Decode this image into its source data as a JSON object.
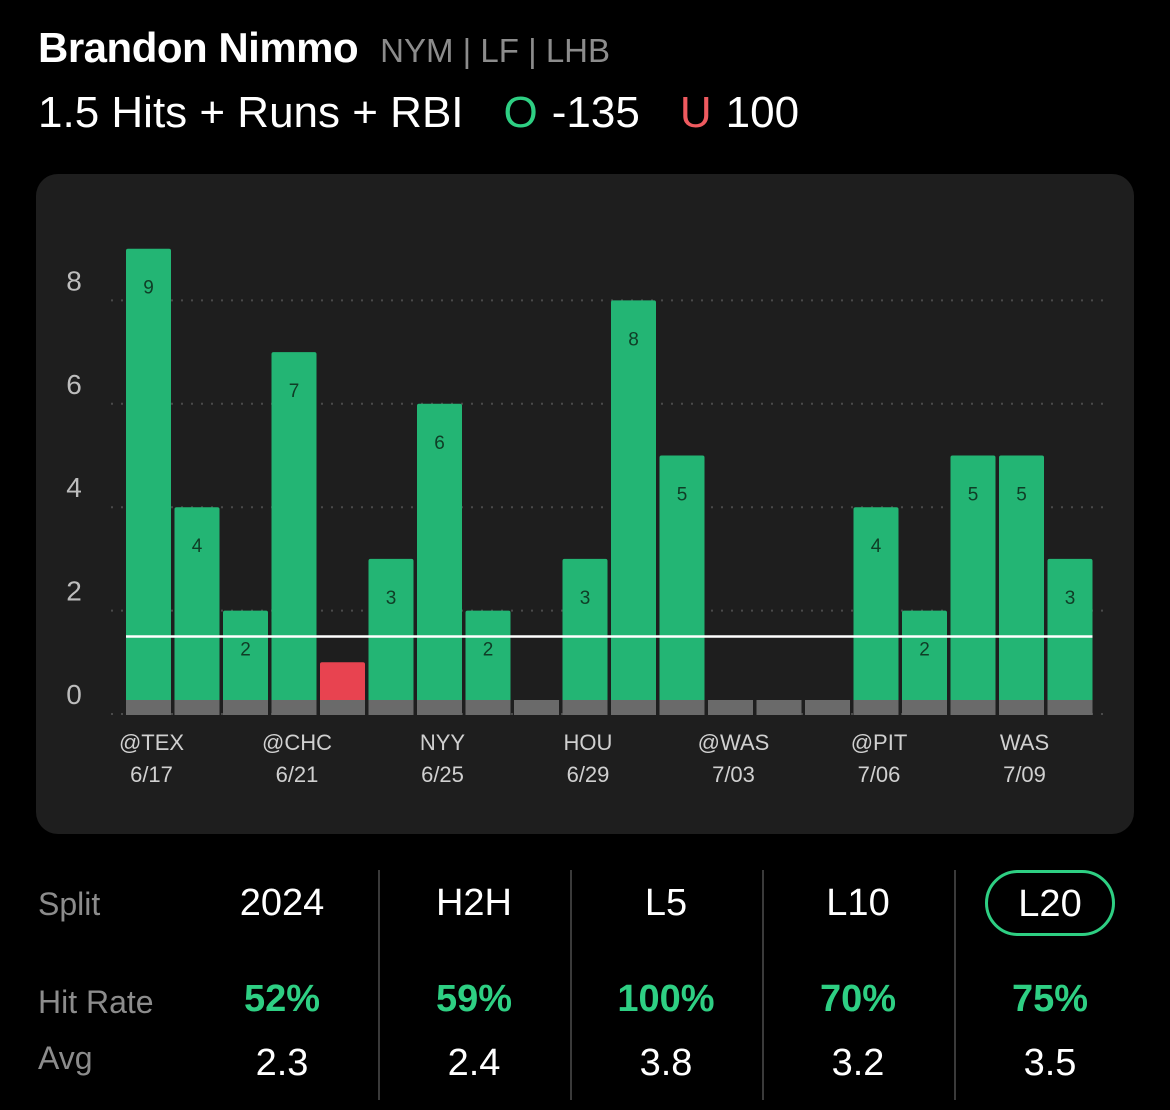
{
  "player": {
    "name": "Brandon Nimmo",
    "meta": "NYM | LF | LHB"
  },
  "prop": {
    "line": "1.5 Hits + Runs + RBI",
    "over_letter": "O",
    "over_odds": "-135",
    "under_letter": "U",
    "under_odds": "100"
  },
  "colors": {
    "hit": "#23b574",
    "miss": "#e84350",
    "none": "#6a6a6a",
    "accent": "#2ecf83"
  },
  "chart_data": {
    "type": "bar",
    "title": "",
    "xlabel": "",
    "ylabel": "",
    "ylim": [
      0,
      9
    ],
    "yticks": [
      0,
      2,
      4,
      6,
      8
    ],
    "threshold": 1.5,
    "grid": true,
    "values": [
      9,
      4,
      2,
      7,
      1,
      3,
      6,
      2,
      null,
      3,
      8,
      5,
      null,
      null,
      null,
      4,
      2,
      5,
      5,
      3
    ],
    "status": [
      "hit",
      "hit",
      "hit",
      "hit",
      "miss",
      "hit",
      "hit",
      "hit",
      "none",
      "hit",
      "hit",
      "hit",
      "none",
      "none",
      "none",
      "hit",
      "hit",
      "hit",
      "hit",
      "hit"
    ],
    "data_labels": [
      "9",
      "4",
      "2",
      "7",
      "",
      "3",
      "6",
      "2",
      "",
      "3",
      "8",
      "5",
      "",
      "",
      "",
      "4",
      "2",
      "5",
      "5",
      "3"
    ],
    "x_tick_labels": [
      {
        "bar": 0,
        "team": "@TEX",
        "date": "6/17"
      },
      {
        "bar": 3,
        "team": "@CHC",
        "date": "6/21"
      },
      {
        "bar": 6,
        "team": "NYY",
        "date": "6/25"
      },
      {
        "bar": 9,
        "team": "HOU",
        "date": "6/29"
      },
      {
        "bar": 12,
        "team": "@WAS",
        "date": "7/03"
      },
      {
        "bar": 15,
        "team": "@PIT",
        "date": "7/06"
      },
      {
        "bar": 18,
        "team": "WAS",
        "date": "7/09"
      }
    ]
  },
  "stats": {
    "labels": {
      "split": "Split",
      "hit_rate": "Hit Rate",
      "avg": "Avg"
    },
    "columns": [
      {
        "split": "2024",
        "hit_rate": "52%",
        "avg": "2.3",
        "active": false
      },
      {
        "split": "H2H",
        "hit_rate": "59%",
        "avg": "2.4",
        "active": false
      },
      {
        "split": "L5",
        "hit_rate": "100%",
        "avg": "3.8",
        "active": false
      },
      {
        "split": "L10",
        "hit_rate": "70%",
        "avg": "3.2",
        "active": false
      },
      {
        "split": "L20",
        "hit_rate": "75%",
        "avg": "3.5",
        "active": true
      }
    ]
  }
}
